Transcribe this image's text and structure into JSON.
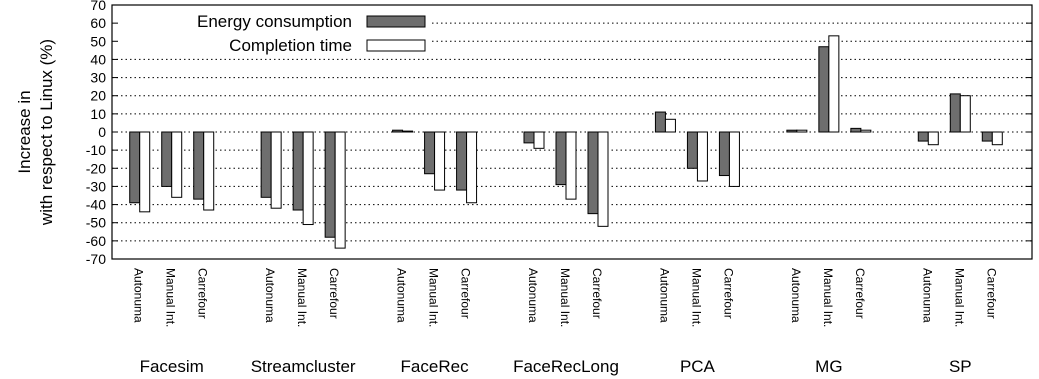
{
  "chart_data": {
    "type": "bar",
    "ylabel": [
      "Increase in",
      "with respect to Linux (%)"
    ],
    "ylim": [
      -70,
      70
    ],
    "yticks": [
      70,
      60,
      50,
      40,
      30,
      20,
      10,
      0,
      -10,
      -20,
      -30,
      -40,
      -50,
      -60,
      -70
    ],
    "grid": true,
    "legend_position": "top-left",
    "series": [
      {
        "name": "Energy consumption",
        "color": "#6e6e6e"
      },
      {
        "name": "Completion time",
        "color": "#ffffff"
      }
    ],
    "groups": [
      {
        "name": "Facesim",
        "bars": [
          {
            "label": "Autonuma",
            "values": [
              -39,
              -44
            ]
          },
          {
            "label": "Manual Int.",
            "values": [
              -30,
              -36
            ]
          },
          {
            "label": "Carrefour",
            "values": [
              -37,
              -43
            ]
          }
        ]
      },
      {
        "name": "Streamcluster",
        "bars": [
          {
            "label": "Autonuma",
            "values": [
              -36,
              -42
            ]
          },
          {
            "label": "Manual Int.",
            "values": [
              -43,
              -51
            ]
          },
          {
            "label": "Carrefour",
            "values": [
              -58,
              -64
            ]
          }
        ]
      },
      {
        "name": "FaceRec",
        "bars": [
          {
            "label": "Autonuma",
            "values": [
              1,
              0.5
            ]
          },
          {
            "label": "Manual Int.",
            "values": [
              -23,
              -32
            ]
          },
          {
            "label": "Carrefour",
            "values": [
              -32,
              -39
            ]
          }
        ]
      },
      {
        "name": "FaceRecLong",
        "bars": [
          {
            "label": "Autonuma",
            "values": [
              -6,
              -9
            ]
          },
          {
            "label": "Manual Int.",
            "values": [
              -29,
              -37
            ]
          },
          {
            "label": "Carrefour",
            "values": [
              -45,
              -52
            ]
          }
        ]
      },
      {
        "name": "PCA",
        "bars": [
          {
            "label": "Autonuma",
            "values": [
              11,
              7
            ]
          },
          {
            "label": "Manual Int.",
            "values": [
              -20,
              -27
            ]
          },
          {
            "label": "Carrefour",
            "values": [
              -24,
              -30
            ]
          }
        ]
      },
      {
        "name": "MG",
        "bars": [
          {
            "label": "Autonuma",
            "values": [
              1,
              1
            ]
          },
          {
            "label": "Manual Int.",
            "values": [
              47,
              53
            ]
          },
          {
            "label": "Carrefour",
            "values": [
              2,
              1
            ]
          }
        ]
      },
      {
        "name": "SP",
        "bars": [
          {
            "label": "Autonuma",
            "values": [
              -5,
              -7
            ]
          },
          {
            "label": "Manual Int.",
            "values": [
              21,
              20
            ]
          },
          {
            "label": "Carrefour",
            "values": [
              -5,
              -7
            ]
          }
        ]
      }
    ]
  }
}
